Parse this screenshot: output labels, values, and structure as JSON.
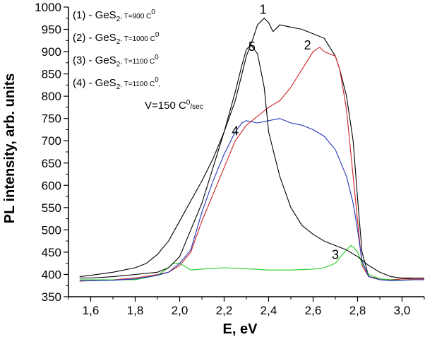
{
  "chart_data": {
    "type": "line",
    "xlabel": "E, eV",
    "ylabel": "PL intensity, arb. units",
    "xlim": [
      1.5,
      3.1
    ],
    "ylim": [
      350,
      1000
    ],
    "x_ticks": [
      1.6,
      1.8,
      2.0,
      2.2,
      2.4,
      2.6,
      2.8,
      3.0
    ],
    "x_tick_labels": [
      "1,6",
      "1,8",
      "2,0",
      "2,2",
      "2,4",
      "2,6",
      "2,8",
      "3,0"
    ],
    "y_ticks": [
      350,
      400,
      450,
      500,
      550,
      600,
      650,
      700,
      750,
      800,
      850,
      900,
      950,
      1000
    ],
    "grid": false,
    "legend_position": "top-left",
    "legend": [
      {
        "prefix": "(1) - GeS",
        "sub": "2",
        "mid": ", T=900 C",
        "sup": "0",
        "suffix": ""
      },
      {
        "prefix": "(2) - GeS",
        "sub": "2",
        "mid": ", T=1000 C",
        "sup": "0",
        "suffix": ""
      },
      {
        "prefix": "(3) - GeS",
        "sub": "2",
        "mid": ", T=1100 C",
        "sup": "0",
        "suffix": ""
      },
      {
        "prefix": "(4) - GeS",
        "sub": "2",
        "mid": ", T=1100 C",
        "sup": "0",
        "suffix": ","
      },
      {
        "prefix": "V=150 C",
        "sub": "",
        "mid": "",
        "sup": "0",
        "suffix": "/sec"
      }
    ],
    "series": [
      {
        "label": "1",
        "color": "#000000",
        "label_at": [
          2.375,
          985
        ],
        "x": [
          1.55,
          1.6,
          1.7,
          1.8,
          1.85,
          1.9,
          1.95,
          2.0,
          2.05,
          2.1,
          2.15,
          2.2,
          2.25,
          2.28,
          2.3,
          2.33,
          2.35,
          2.38,
          2.4,
          2.42,
          2.45,
          2.5,
          2.55,
          2.6,
          2.65,
          2.7,
          2.72,
          2.75,
          2.78,
          2.8,
          2.82,
          2.85,
          2.9,
          2.95,
          3.0,
          3.05,
          3.1
        ],
        "values": [
          395,
          398,
          405,
          415,
          425,
          445,
          475,
          520,
          565,
          610,
          660,
          720,
          790,
          850,
          890,
          930,
          960,
          975,
          965,
          945,
          960,
          955,
          950,
          940,
          930,
          890,
          860,
          800,
          700,
          570,
          450,
          395,
          390,
          388,
          390,
          392,
          392
        ]
      },
      {
        "label": "2",
        "color": "#cc2222",
        "label_at": [
          2.575,
          905
        ],
        "x": [
          1.55,
          1.6,
          1.7,
          1.8,
          1.9,
          1.95,
          2.0,
          2.05,
          2.1,
          2.15,
          2.2,
          2.25,
          2.3,
          2.35,
          2.4,
          2.45,
          2.5,
          2.55,
          2.6,
          2.63,
          2.65,
          2.7,
          2.72,
          2.75,
          2.78,
          2.8,
          2.82,
          2.85,
          2.9,
          2.95,
          3.0,
          3.05,
          3.1
        ],
        "values": [
          385,
          386,
          388,
          392,
          400,
          405,
          420,
          450,
          520,
          580,
          640,
          700,
          735,
          755,
          775,
          790,
          820,
          860,
          900,
          910,
          900,
          890,
          860,
          770,
          620,
          520,
          420,
          395,
          390,
          388,
          390,
          390,
          390
        ]
      },
      {
        "label": "3",
        "color": "#22cc22",
        "label_at": [
          2.7,
          435
        ],
        "x": [
          1.55,
          1.6,
          1.7,
          1.8,
          1.9,
          1.95,
          1.97,
          2.0,
          2.05,
          2.1,
          2.2,
          2.3,
          2.4,
          2.5,
          2.6,
          2.65,
          2.7,
          2.72,
          2.75,
          2.77,
          2.78,
          2.8,
          2.82,
          2.85,
          2.9,
          2.95,
          3.0,
          3.05,
          3.1
        ],
        "values": [
          388,
          388,
          388,
          388,
          398,
          415,
          425,
          425,
          410,
          412,
          415,
          413,
          410,
          410,
          412,
          415,
          425,
          438,
          455,
          465,
          462,
          450,
          425,
          400,
          390,
          388,
          387,
          388,
          388
        ]
      },
      {
        "label": "4",
        "color": "#2233bb",
        "label_at": [
          2.25,
          712
        ],
        "x": [
          1.55,
          1.6,
          1.7,
          1.8,
          1.9,
          1.95,
          2.0,
          2.05,
          2.1,
          2.15,
          2.2,
          2.25,
          2.28,
          2.3,
          2.35,
          2.4,
          2.45,
          2.5,
          2.55,
          2.6,
          2.65,
          2.7,
          2.75,
          2.78,
          2.8,
          2.82,
          2.85,
          2.9,
          2.95,
          3.0,
          3.05,
          3.1
        ],
        "values": [
          386,
          386,
          387,
          390,
          398,
          405,
          425,
          455,
          540,
          610,
          670,
          720,
          740,
          745,
          740,
          745,
          750,
          740,
          735,
          725,
          710,
          680,
          620,
          560,
          500,
          430,
          395,
          388,
          386,
          387,
          388,
          388
        ]
      },
      {
        "label": "5",
        "color": "#000000",
        "label_at": [
          2.325,
          902
        ],
        "x": [
          1.55,
          1.6,
          1.7,
          1.8,
          1.9,
          1.95,
          2.0,
          2.05,
          2.1,
          2.15,
          2.2,
          2.25,
          2.28,
          2.3,
          2.32,
          2.35,
          2.38,
          2.4,
          2.45,
          2.5,
          2.55,
          2.6,
          2.65,
          2.7,
          2.75,
          2.8,
          2.85,
          2.9,
          2.95,
          3.0,
          3.05,
          3.1
        ],
        "values": [
          392,
          392,
          395,
          400,
          405,
          415,
          440,
          500,
          560,
          640,
          720,
          810,
          870,
          905,
          915,
          895,
          820,
          720,
          620,
          550,
          510,
          490,
          475,
          465,
          455,
          440,
          420,
          405,
          395,
          392,
          392,
          392
        ]
      }
    ]
  }
}
